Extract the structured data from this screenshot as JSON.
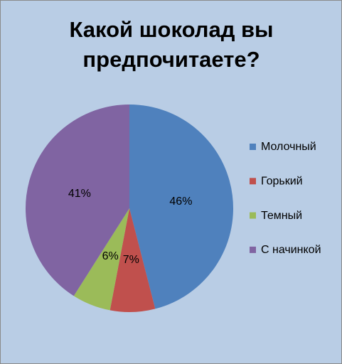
{
  "chart_data": {
    "type": "pie",
    "title": "Какой шоколад вы предпочитаете?",
    "categories": [
      "Молочный",
      "Горький",
      "Темный",
      "С начинкой"
    ],
    "values": [
      46,
      7,
      6,
      41
    ],
    "value_labels": [
      "46%",
      "7%",
      "6%",
      "41%"
    ],
    "colors": [
      "#4f81bd",
      "#c0504d",
      "#9bbb59",
      "#8064a2"
    ],
    "legend": "right"
  }
}
